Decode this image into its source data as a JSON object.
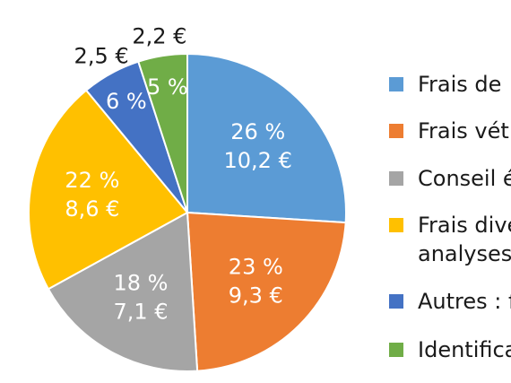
{
  "chart_data": {
    "type": "pie",
    "slices": [
      {
        "label_line1": "26 %",
        "label_line2": "10,2 €",
        "percent": 26,
        "value": 10.2,
        "color": "#5b9bd5",
        "label_pos": "inside"
      },
      {
        "label_line1": "23 %",
        "label_line2": "9,3 €",
        "percent": 23,
        "value": 9.3,
        "color": "#ed7d31",
        "label_pos": "inside"
      },
      {
        "label_line1": "18 %",
        "label_line2": "7,1 €",
        "percent": 18,
        "value": 7.1,
        "color": "#a5a5a5",
        "label_pos": "inside"
      },
      {
        "label_line1": "22 %",
        "label_line2": "8,6 €",
        "percent": 22,
        "value": 8.6,
        "color": "#ffc000",
        "label_pos": "inside"
      },
      {
        "label_line1": "6 %",
        "label_line2": "2,5 €",
        "percent": 6,
        "value": 2.5,
        "color": "#4472c4",
        "label_pos": "split"
      },
      {
        "label_line1": "5 %",
        "label_line2": "2,2 €",
        "percent": 5,
        "value": 2.2,
        "color": "#70ad47",
        "label_pos": "split"
      }
    ],
    "legend": {
      "placement": "right",
      "entries": [
        {
          "text_lines": [
            "Frais de"
          ],
          "color": "#5b9bd5"
        },
        {
          "text_lines": [
            "Frais vét"
          ],
          "color": "#ed7d31"
        },
        {
          "text_lines": [
            "Conseil é"
          ],
          "color": "#a5a5a5"
        },
        {
          "text_lines": [
            "Frais dive",
            "analyses"
          ],
          "color": "#ffc000"
        },
        {
          "text_lines": [
            "Autres : f"
          ],
          "color": "#4472c4"
        },
        {
          "text_lines": [
            "Identifica"
          ],
          "color": "#70ad47"
        }
      ]
    }
  }
}
